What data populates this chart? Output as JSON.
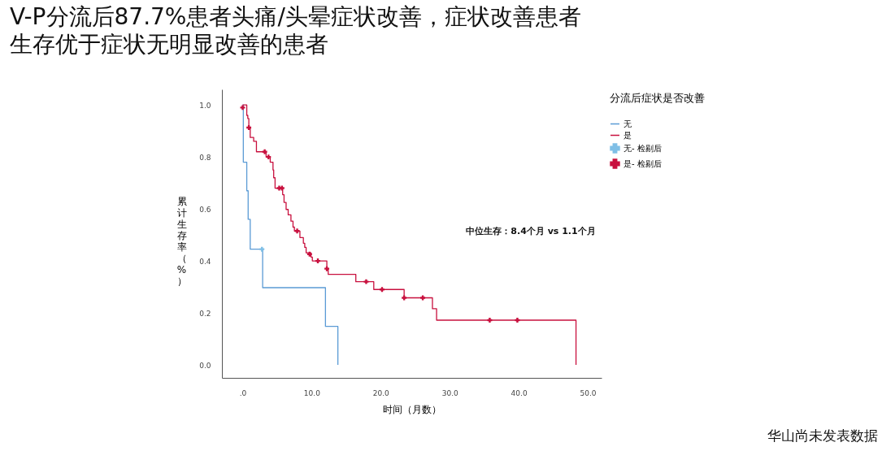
{
  "chart_data": {
    "type": "step",
    "title": "V-P分流后87.7%患者头痛/头晕症状改善，症状改善患者生存优于症状无明显改善的患者",
    "xlabel": "时间（月数）",
    "ylabel": "累计生存率（%）",
    "legend_title": "分流后症状是否改善",
    "annotations": [
      "中位生存：8.4个月 vs 1.1个月",
      "华山尚未发表数据"
    ],
    "series": [
      {
        "name": "无",
        "color": "#5b9bd5",
        "x": [
          0,
          0.1,
          0.6,
          0.8,
          1.1,
          2.9,
          12.0,
          13.8
        ],
        "values": [
          1.0,
          0.78,
          0.67,
          0.56,
          0.445,
          0.297,
          0.148,
          0
        ]
      },
      {
        "name": "是",
        "color": "#c8103e",
        "x": [
          0,
          0.6,
          0.75,
          0.9,
          1.1,
          1.6,
          2.0,
          3.4,
          4.0,
          4.4,
          4.5,
          4.7,
          5.8,
          6.0,
          6.3,
          6.6,
          7.0,
          7.3,
          7.5,
          8.3,
          8.8,
          9.0,
          9.2,
          9.9,
          10.1,
          12.2,
          12.4,
          16.4,
          19.0,
          23.4,
          27.5,
          28.1,
          48.3
        ],
        "values": [
          1.0,
          0.96,
          0.948,
          0.913,
          0.875,
          0.86,
          0.82,
          0.8,
          0.78,
          0.75,
          0.72,
          0.68,
          0.655,
          0.625,
          0.598,
          0.577,
          0.553,
          0.53,
          0.515,
          0.49,
          0.468,
          0.452,
          0.431,
          0.415,
          0.4,
          0.37,
          0.348,
          0.32,
          0.29,
          0.258,
          0.216,
          0.172,
          0
        ]
      },
      {
        "name": "无- 检剔后",
        "type": "scatter",
        "marker": "cross",
        "color": "#7fbfe6",
        "x": [
          2.8
        ],
        "values": [
          0.445
        ]
      },
      {
        "name": "是- 检剔后",
        "type": "scatter",
        "marker": "cross",
        "color": "#c8103e",
        "x": [
          0,
          0.9,
          3.2,
          3.75,
          5.3,
          5.7,
          7.9,
          9.7,
          10.9,
          12.2,
          17.9,
          20.2,
          23.4,
          26.1,
          35.8,
          39.8
        ],
        "values": [
          0.99,
          0.913,
          0.82,
          0.8,
          0.68,
          0.68,
          0.515,
          0.426,
          0.4,
          0.37,
          0.32,
          0.29,
          0.258,
          0.258,
          0.172,
          0.172
        ]
      }
    ],
    "xlim": [
      -3,
      52
    ],
    "xticks": [
      {
        "value": 0,
        "label": ".0"
      },
      {
        "value": 10,
        "label": "10.0"
      },
      {
        "value": 20,
        "label": "20.0"
      },
      {
        "value": 30,
        "label": "30.0"
      },
      {
        "value": 40,
        "label": "40.0"
      },
      {
        "value": 50,
        "label": "50.0"
      }
    ],
    "ylim": [
      -0.05,
      1.06
    ],
    "yticks": [
      {
        "value": 0,
        "label": "0.0"
      },
      {
        "value": 0.2,
        "label": "0.2"
      },
      {
        "value": 0.4,
        "label": "0.4"
      },
      {
        "value": 0.6,
        "label": "0.6"
      },
      {
        "value": 0.8,
        "label": "0.8"
      },
      {
        "value": 1.0,
        "label": "1.0"
      }
    ],
    "grid": false,
    "legend": "top right"
  }
}
